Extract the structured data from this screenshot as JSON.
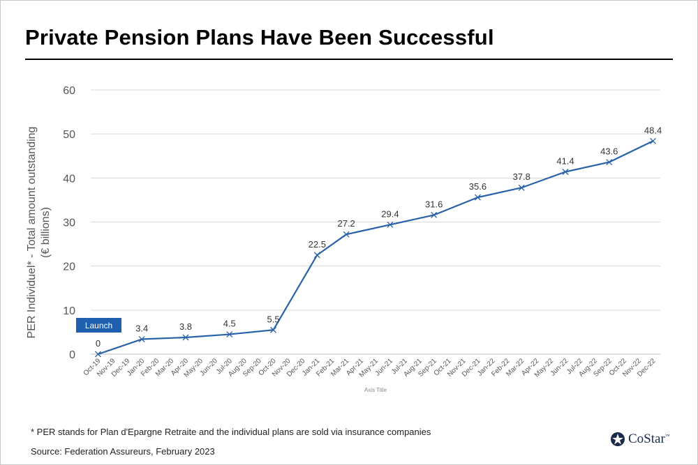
{
  "page": {
    "title": "Private Pension Plans Have Been Successful",
    "footnote": "* PER stands for Plan d'Epargne Retraite and the individual plans are sold via insurance companies",
    "source": "Source: Federation Assureurs, February 2023",
    "logo_text": "CoStar",
    "logo_tm": "™"
  },
  "colors": {
    "line": "#2a62a8",
    "grid": "#d9d9d9",
    "launch_box": "#1f5fb0"
  },
  "chart_data": {
    "type": "line",
    "title": "Private Pension Plans Have Been Successful",
    "xlabel": "Axis Title",
    "ylabel_lines": [
      "PER Individuel* - Total amount outstanding",
      "(€ billions)"
    ],
    "ylim": [
      0,
      60
    ],
    "yticks": [
      0,
      10,
      20,
      30,
      40,
      50,
      60
    ],
    "grid": true,
    "annotation": "Launch",
    "categories": [
      "Oct-19",
      "Nov-19",
      "Dec-19",
      "Jan-20",
      "Feb-20",
      "Mar-20",
      "Apr-20",
      "May-20",
      "Jun-20",
      "Jul-20",
      "Aug-20",
      "Sep-20",
      "Oct-20",
      "Nov-20",
      "Dec-20",
      "Jan-21",
      "Feb-21",
      "Mar-21",
      "Apr-21",
      "May-21",
      "Jun-21",
      "Jul-21",
      "Aug-21",
      "Sep-21",
      "Oct-21",
      "Nov-21",
      "Dec-21",
      "Jan-22",
      "Feb-22",
      "Mar-22",
      "Apr-22",
      "May-22",
      "Jun-22",
      "Jul-22",
      "Aug-22",
      "Sep-22",
      "Oct-22",
      "Nov-22",
      "Dec-22"
    ],
    "series": [
      {
        "points": [
          {
            "x": "Oct-19",
            "y": 0,
            "label": "0"
          },
          {
            "x": "Jan-20",
            "y": 3.4,
            "label": "3.4"
          },
          {
            "x": "Apr-20",
            "y": 3.8,
            "label": "3.8"
          },
          {
            "x": "Jul-20",
            "y": 4.5,
            "label": "4.5"
          },
          {
            "x": "Oct-20",
            "y": 5.5,
            "label": "5.5"
          },
          {
            "x": "Jan-21",
            "y": 22.5,
            "label": "22.5"
          },
          {
            "x": "Mar-21",
            "y": 27.2,
            "label": "27.2"
          },
          {
            "x": "Jun-21",
            "y": 29.4,
            "label": "29.4"
          },
          {
            "x": "Sep-21",
            "y": 31.6,
            "label": "31.6"
          },
          {
            "x": "Dec-21",
            "y": 35.6,
            "label": "35.6"
          },
          {
            "x": "Mar-22",
            "y": 37.8,
            "label": "37.8"
          },
          {
            "x": "Jun-22",
            "y": 41.4,
            "label": "41.4"
          },
          {
            "x": "Sep-22",
            "y": 43.6,
            "label": "43.6"
          },
          {
            "x": "Dec-22",
            "y": 48.4,
            "label": "48.4"
          }
        ]
      }
    ]
  }
}
